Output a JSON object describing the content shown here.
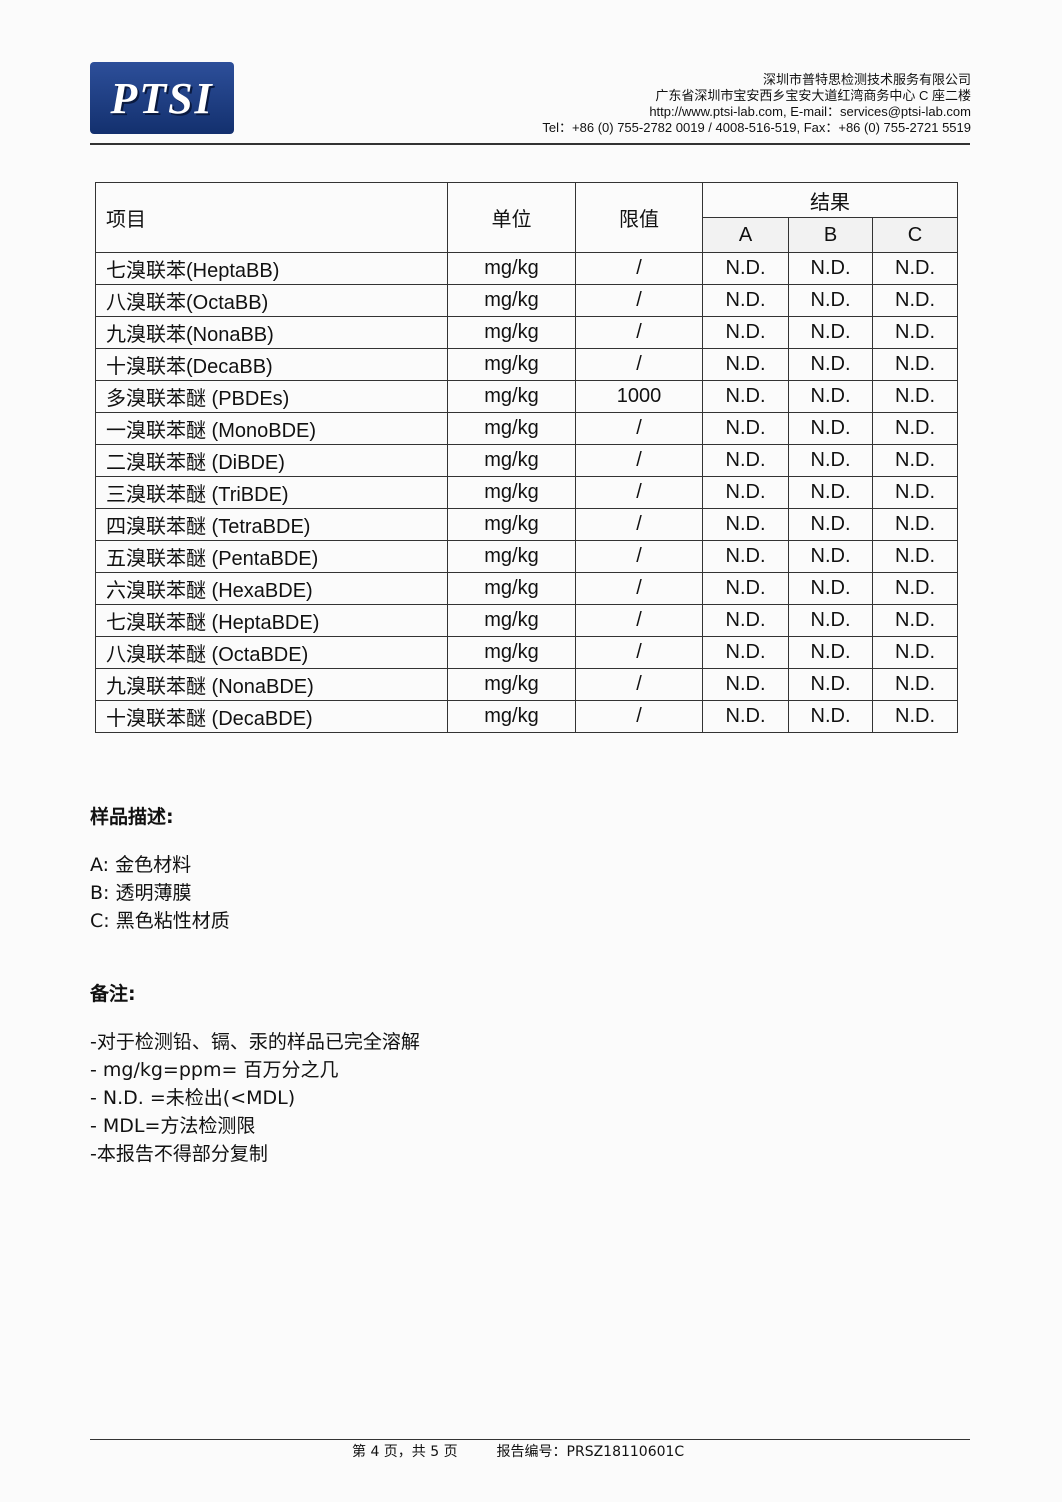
{
  "header": {
    "logo": "PTSI",
    "company": "深圳市普特思检测技术服务有限公司",
    "address": "广东省深圳市宝安西乡宝安大道红湾商务中心 C 座二楼",
    "web": "http://www.ptsi-lab.com, E-mail：services@ptsi-lab.com",
    "tel": "Tel：+86 (0) 755-2782 0019 / 4008-516-519,  Fax：+86 (0) 755-2721 5519"
  },
  "table": {
    "headers": {
      "item": "项目",
      "unit": "单位",
      "limit": "限值",
      "result": "结果",
      "a": "A",
      "b": "B",
      "c": "C"
    },
    "rows": [
      [
        "七溴联苯(HeptaBB)",
        "mg/kg",
        "/",
        "N.D.",
        "N.D.",
        "N.D."
      ],
      [
        "八溴联苯(OctaBB)",
        "mg/kg",
        "/",
        "N.D.",
        "N.D.",
        "N.D."
      ],
      [
        "九溴联苯(NonaBB)",
        "mg/kg",
        "/",
        "N.D.",
        "N.D.",
        "N.D."
      ],
      [
        "十溴联苯(DecaBB)",
        "mg/kg",
        "/",
        "N.D.",
        "N.D.",
        "N.D."
      ],
      [
        "多溴联苯醚 (PBDEs)",
        "mg/kg",
        "1000",
        "N.D.",
        "N.D.",
        "N.D."
      ],
      [
        "一溴联苯醚 (MonoBDE)",
        "mg/kg",
        "/",
        "N.D.",
        "N.D.",
        "N.D."
      ],
      [
        "二溴联苯醚 (DiBDE)",
        "mg/kg",
        "/",
        "N.D.",
        "N.D.",
        "N.D."
      ],
      [
        "三溴联苯醚 (TriBDE)",
        "mg/kg",
        "/",
        "N.D.",
        "N.D.",
        "N.D."
      ],
      [
        "四溴联苯醚 (TetraBDE)",
        "mg/kg",
        "/",
        "N.D.",
        "N.D.",
        "N.D."
      ],
      [
        "五溴联苯醚 (PentaBDE)",
        "mg/kg",
        "/",
        "N.D.",
        "N.D.",
        "N.D."
      ],
      [
        "六溴联苯醚 (HexaBDE)",
        "mg/kg",
        "/",
        "N.D.",
        "N.D.",
        "N.D."
      ],
      [
        "七溴联苯醚 (HeptaBDE)",
        "mg/kg",
        "/",
        "N.D.",
        "N.D.",
        "N.D."
      ],
      [
        "八溴联苯醚 (OctaBDE)",
        "mg/kg",
        "/",
        "N.D.",
        "N.D.",
        "N.D."
      ],
      [
        "九溴联苯醚 (NonaBDE)",
        "mg/kg",
        "/",
        "N.D.",
        "N.D.",
        "N.D."
      ],
      [
        "十溴联苯醚 (DecaBDE)",
        "mg/kg",
        "/",
        "N.D.",
        "N.D.",
        "N.D."
      ]
    ]
  },
  "samples": {
    "title": "样品描述:",
    "items": [
      "A:  金色材料",
      "B:  透明薄膜",
      "C:  黑色粘性材质"
    ]
  },
  "notes": {
    "title": "备注:",
    "items": [
      "-对于检测铅、镉、汞的样品已完全溶解",
      "- mg/kg=ppm=  百万分之几",
      "- N.D. =未检出(<MDL)",
      "- MDL=方法检测限",
      "-本报告不得部分复制"
    ]
  },
  "footer": {
    "page": "第 4 页，共 5 页",
    "report_no": "报告编号：PRSZ18110601C"
  }
}
